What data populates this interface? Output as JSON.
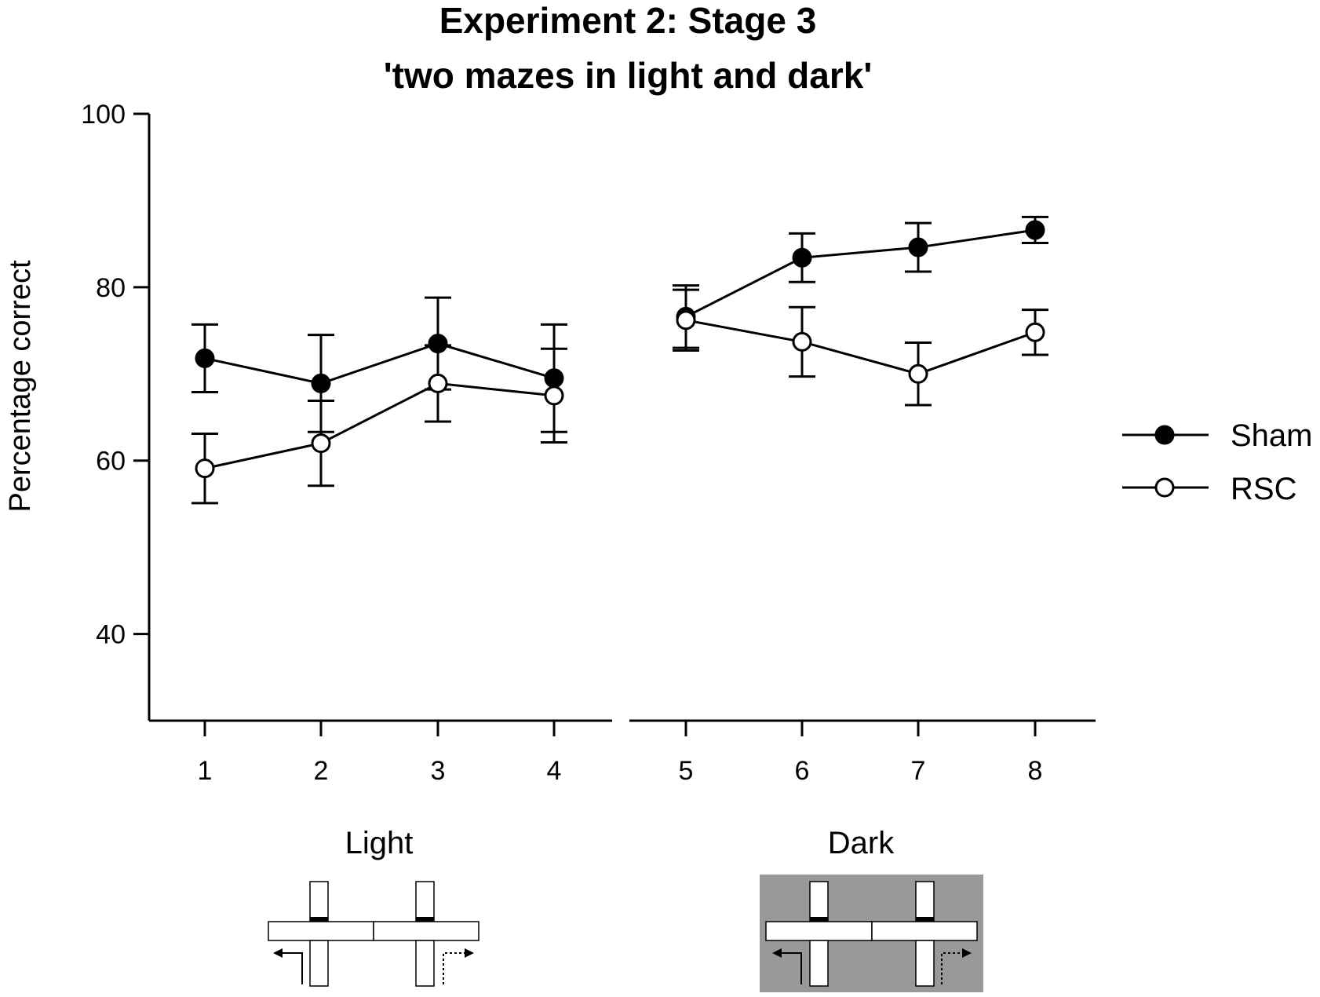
{
  "chart_data": {
    "type": "line",
    "title": "Experiment 2: Stage 3",
    "subtitle": "'two mazes in light and dark'",
    "ylabel": "Percentage correct",
    "xlabel": "",
    "ylim": [
      30,
      100
    ],
    "yticks": [
      40,
      60,
      80,
      100
    ],
    "x": [
      1,
      2,
      3,
      4,
      5,
      6,
      7,
      8
    ],
    "segments": [
      {
        "label": "Light",
        "x": [
          1,
          2,
          3,
          4
        ]
      },
      {
        "label": "Dark",
        "x": [
          5,
          6,
          7,
          8
        ]
      }
    ],
    "series": [
      {
        "name": "Sham",
        "marker": "filled",
        "values": [
          71.8,
          68.9,
          73.5,
          69.5,
          76.6,
          83.4,
          84.6,
          86.6
        ],
        "error": [
          3.9,
          5.6,
          5.3,
          6.2,
          3.6,
          2.8,
          2.8,
          1.5
        ]
      },
      {
        "name": "RSC",
        "marker": "open",
        "values": [
          59.1,
          62.0,
          68.9,
          67.5,
          76.2,
          73.7,
          70.0,
          74.8
        ],
        "error": [
          4.0,
          4.9,
          4.4,
          5.4,
          3.5,
          4.0,
          3.6,
          2.6
        ]
      }
    ],
    "legend_position": "right",
    "grid": false
  },
  "conditions": {
    "light_label": "Light",
    "dark_label": "Dark",
    "light_bg": "#ffffff",
    "dark_bg": "#999999"
  },
  "colors": {
    "line": "#000000",
    "sham_fill": "#000000",
    "rsc_fill": "#ffffff"
  }
}
